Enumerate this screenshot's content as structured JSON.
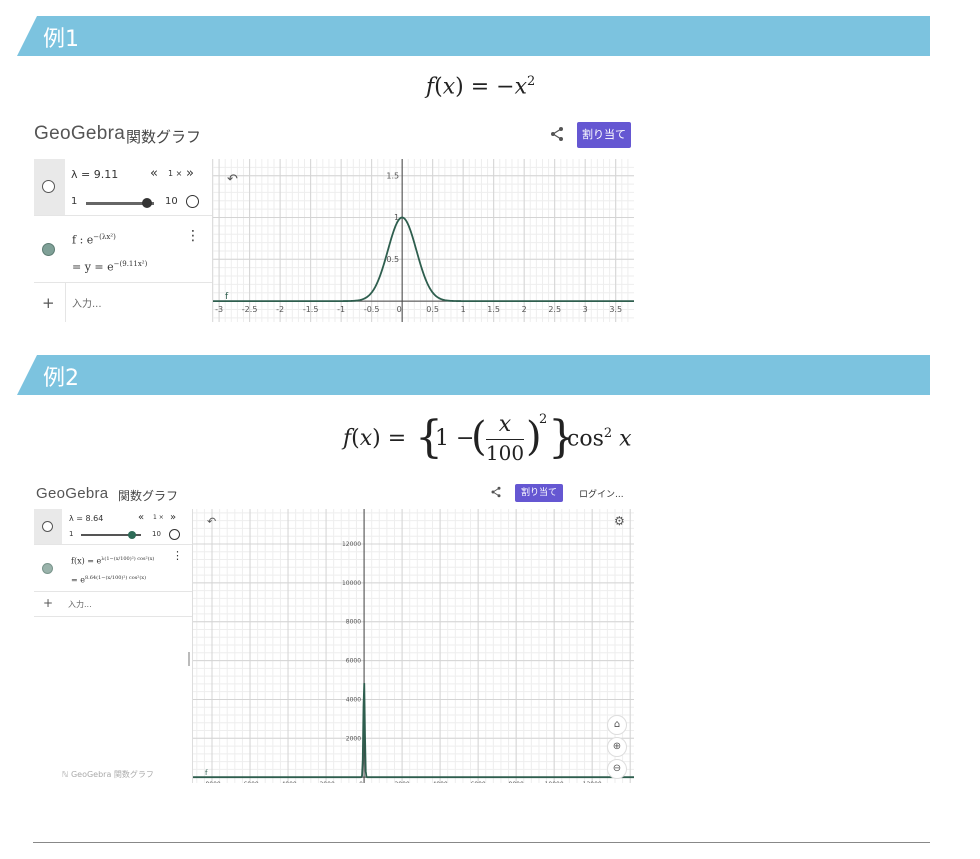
{
  "example1": {
    "banner": "例1",
    "formula": {
      "f": "f",
      "x": "x",
      "eq": " = −",
      "power": "2"
    },
    "app": {
      "logo": "GeoGebra",
      "title": "関数グラフ",
      "assign_button": "割り当て",
      "slider": {
        "label": "λ = 9.11",
        "min": "1",
        "max": "10",
        "speed": "1 ×",
        "value_fraction": 0.9
      },
      "function_def": "f : e",
      "function_def_exp": "−(λx²)",
      "function_eval": "=  y = e",
      "function_eval_exp": "−(9.11x²)",
      "input_placeholder": "入力...",
      "plus": "+",
      "curve_label": "f",
      "chart_data": {
        "type": "line",
        "function": "exp(-9.11*x^2)",
        "xlim": [
          -3.1,
          3.8
        ],
        "ylim": [
          -0.25,
          1.7
        ],
        "x_ticks": [
          "-3",
          "-2.5",
          "-2",
          "-1.5",
          "-1",
          "-0.5",
          "0",
          "0.5",
          "1",
          "1.5",
          "2",
          "2.5",
          "3",
          "3.5"
        ],
        "y_ticks": [
          "0.5",
          "1",
          "1.5"
        ],
        "grid": true,
        "line_color": "#2e5e4e"
      }
    }
  },
  "example2": {
    "banner": "例2",
    "formula": {
      "f": "f",
      "x": "x",
      "eq": " = ",
      "one_minus": "1 − ",
      "num": "x",
      "den": "100",
      "power": "2",
      "cos": "cos",
      "cos_power": "2"
    },
    "app": {
      "logo": "GeoGebra",
      "title": "関数グラフ",
      "assign_button": "割り当て",
      "login": "ログイン...",
      "slider": {
        "label": "λ = 8.64",
        "min": "1",
        "max": "10",
        "speed": "1 ×",
        "value_fraction": 0.85
      },
      "function_def": "f(x) = e",
      "function_def_exp": "λ(1−(x/100)²) cos²(x)",
      "function_eval": "=  e",
      "function_eval_exp": "8.64(1−(x/100)²) cos²(x)",
      "input_placeholder": "入力...",
      "plus": "+",
      "footer_brand": "GeoGebra 関数グラフ",
      "curve_label": "f",
      "chart_data": {
        "type": "line",
        "function": "spike near x=0 reaching ~5000",
        "xlim": [
          -9000,
          14200
        ],
        "ylim": [
          -300,
          13800
        ],
        "x_ticks": [
          "-8000",
          "-6000",
          "-4000",
          "-2000",
          "0",
          "2000",
          "4000",
          "6000",
          "8000",
          "10000",
          "12000"
        ],
        "y_ticks": [
          "2000",
          "4000",
          "6000",
          "8000",
          "10000",
          "12000"
        ],
        "spike_peak": 5000,
        "grid": true,
        "line_color": "#2e5e4e"
      }
    }
  }
}
